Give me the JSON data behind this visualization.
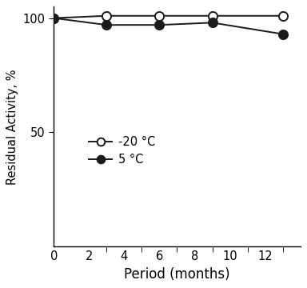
{
  "x_neg20": [
    0,
    3,
    6,
    9,
    13
  ],
  "y_neg20": [
    100,
    101,
    101,
    101,
    101
  ],
  "x_5c": [
    0,
    3,
    6,
    9,
    13
  ],
  "y_5c": [
    100,
    97,
    97,
    98,
    93
  ],
  "xlabel": "Period (months)",
  "ylabel": "Residual Activity, %",
  "xlim": [
    0,
    14
  ],
  "ylim": [
    0,
    105
  ],
  "yticks": [
    50,
    100
  ],
  "xticks_major": [
    0,
    2,
    4,
    6,
    8,
    10,
    12
  ],
  "xticks_minor": [
    3,
    5,
    7,
    9,
    11,
    13
  ],
  "label_neg20": "-20 °C",
  "label_5c": "5 °C",
  "line_color": "#1a1a1a",
  "bg_color": "#ffffff",
  "marker_size": 8,
  "linewidth": 1.4,
  "xlabel_fontsize": 12,
  "ylabel_fontsize": 10.5,
  "tick_fontsize": 10.5,
  "legend_fontsize": 10.5
}
